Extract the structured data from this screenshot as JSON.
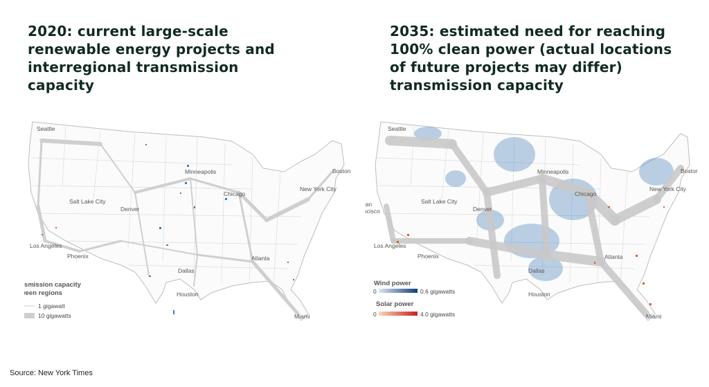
{
  "left_panel": {
    "title": "2020: current large-scale\nrenewable energy projects and\ninterregional transmission\ncapacity",
    "cities": {
      "seattle": "Seattle",
      "minneapolis": "Minneapolis",
      "boston": "Boston",
      "new_york": "New York City",
      "chicago": "Chicago",
      "salt_lake": "Salt Lake City",
      "denver": "Denver",
      "los_angeles": "Los Angeles",
      "phoenix": "Phoenix",
      "dallas": "Dallas",
      "atlanta": "Atlanta",
      "houston": "Houston",
      "miami": "Miami"
    },
    "legend": {
      "title_line1": "Transmission capacity",
      "title_line2": "between regions",
      "small_label": "1 gigawatt",
      "large_label": "10 gigawatts"
    }
  },
  "right_panel": {
    "title": "2035: estimated need for reaching\n100% clean power (actual locations\nof future projects may differ)\ntransmission capacity",
    "cities": {
      "seattle": "Seattle",
      "minneapolis": "Minneapolis",
      "boston": "Boston",
      "new_york": "New York City",
      "chicago": "Chicago",
      "salt_lake": "Salt Lake City",
      "denver": "Denver",
      "san_francisco_line1": "San",
      "san_francisco_line2": "Francisco",
      "los_angeles": "Los Angeles",
      "phoenix": "Phoenix",
      "dallas": "Dallas",
      "atlanta": "Atlanta",
      "houston": "Houston",
      "miami": "Miami"
    },
    "legend": {
      "wind_title": "Wind power",
      "wind_min": "0",
      "wind_max": "0.6 gigawatts",
      "solar_title": "Solar power",
      "solar_min": "0",
      "solar_max": "4.0 gigawatts"
    }
  },
  "colors": {
    "title": "#112a22",
    "transmission": "#c9c9c9",
    "wind": "#3f7cb8",
    "solar": "#d9592b"
  },
  "source": "Source: New York Times"
}
